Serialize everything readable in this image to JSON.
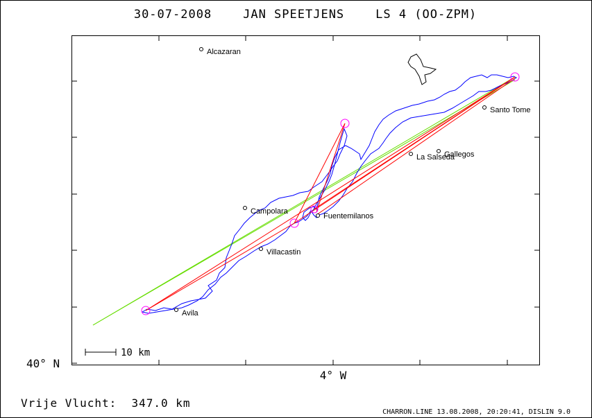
{
  "title": "30-07-2008    JAN SPEETJENS    LS 4 (OO-ZPM)",
  "axis": {
    "lat_label": "40° N",
    "lon_label": "4° W"
  },
  "towns": [
    {
      "name": "Alcazaran"
    },
    {
      "name": "Santo Tome"
    },
    {
      "name": "Gallegos"
    },
    {
      "name": "La Salseda"
    },
    {
      "name": "Campolara"
    },
    {
      "name": "Fuentemilanos"
    },
    {
      "name": "Villacastin"
    },
    {
      "name": "Avila"
    }
  ],
  "scale_bar": {
    "label": "10 km"
  },
  "distance_text": "Vrije Vlucht:  347.0 km",
  "footer": "CHARRON.LINE 13.08.2008, 20:20:41, DISLIN 9.0",
  "colors": {
    "track": "#0000ff",
    "task_line": "#ff0000",
    "assigned_line": "#66dd00",
    "turnpoint": "#ff00ff",
    "frame": "#000000"
  }
}
